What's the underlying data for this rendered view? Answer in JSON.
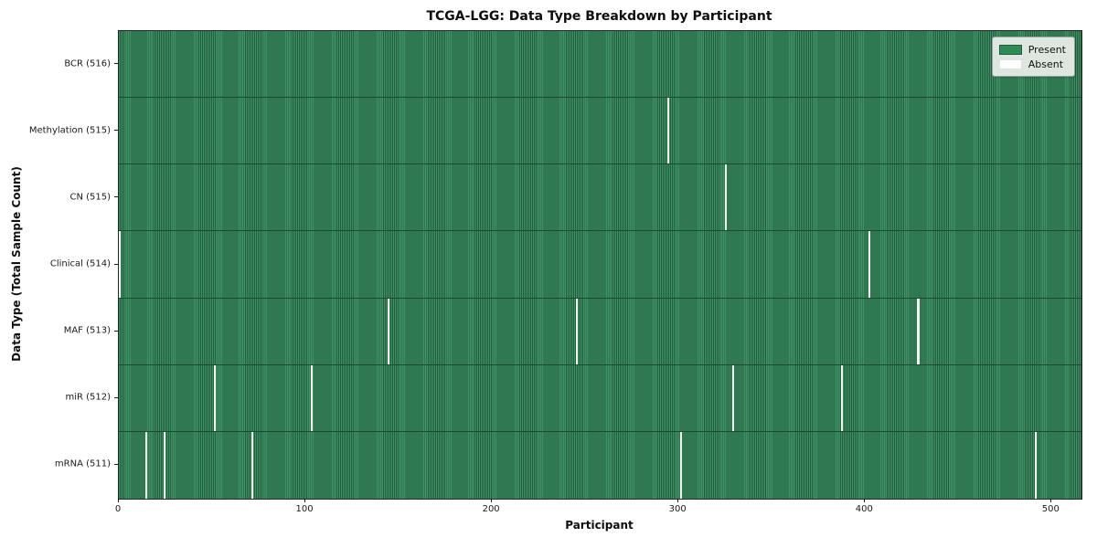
{
  "title": "TCGA-LGG: Data Type Breakdown by Participant",
  "xlabel": "Participant",
  "ylabel": "Data Type (Total Sample Count)",
  "legend": {
    "present_label": "Present",
    "absent_label": "Absent"
  },
  "colors": {
    "present": "#2e8b57",
    "present_stripe_light": "#3f9065",
    "present_stripe_dark": "#215f3e",
    "row_edge": "#1b4931",
    "absent": "#f3f3f0",
    "legend_bg": "#dde7e0"
  },
  "chart_data": {
    "type": "heatmap",
    "title": "TCGA-LGG: Data Type Breakdown by Participant",
    "xlabel": "Participant",
    "ylabel": "Data Type (Total Sample Count)",
    "x_range": [
      0,
      516
    ],
    "x_ticks": [
      0,
      100,
      200,
      300,
      400,
      500
    ],
    "n_participants": 516,
    "grid": false,
    "legend_position": "upper right",
    "legend": [
      {
        "label": "Present",
        "color": "#2e8b57"
      },
      {
        "label": "Absent",
        "color": "#ffffff"
      }
    ],
    "rows": [
      {
        "label": "BCR (516)",
        "data_type": "BCR",
        "present_count": 516,
        "absent_participants": []
      },
      {
        "label": "Methylation (515)",
        "data_type": "Methylation",
        "present_count": 515,
        "absent_participants": [
          294
        ]
      },
      {
        "label": "CN (515)",
        "data_type": "CN",
        "present_count": 515,
        "absent_participants": [
          325
        ]
      },
      {
        "label": "Clinical (514)",
        "data_type": "Clinical",
        "present_count": 514,
        "absent_participants": [
          0,
          402
        ]
      },
      {
        "label": "MAF (513)",
        "data_type": "MAF",
        "present_count": 513,
        "absent_participants": [
          144,
          245,
          428
        ]
      },
      {
        "label": "miR (512)",
        "data_type": "miR",
        "present_count": 512,
        "absent_participants": [
          51,
          103,
          329,
          387
        ]
      },
      {
        "label": "mRNA (511)",
        "data_type": "mRNA",
        "present_count": 511,
        "absent_participants": [
          14,
          24,
          71,
          301,
          491
        ]
      }
    ]
  }
}
